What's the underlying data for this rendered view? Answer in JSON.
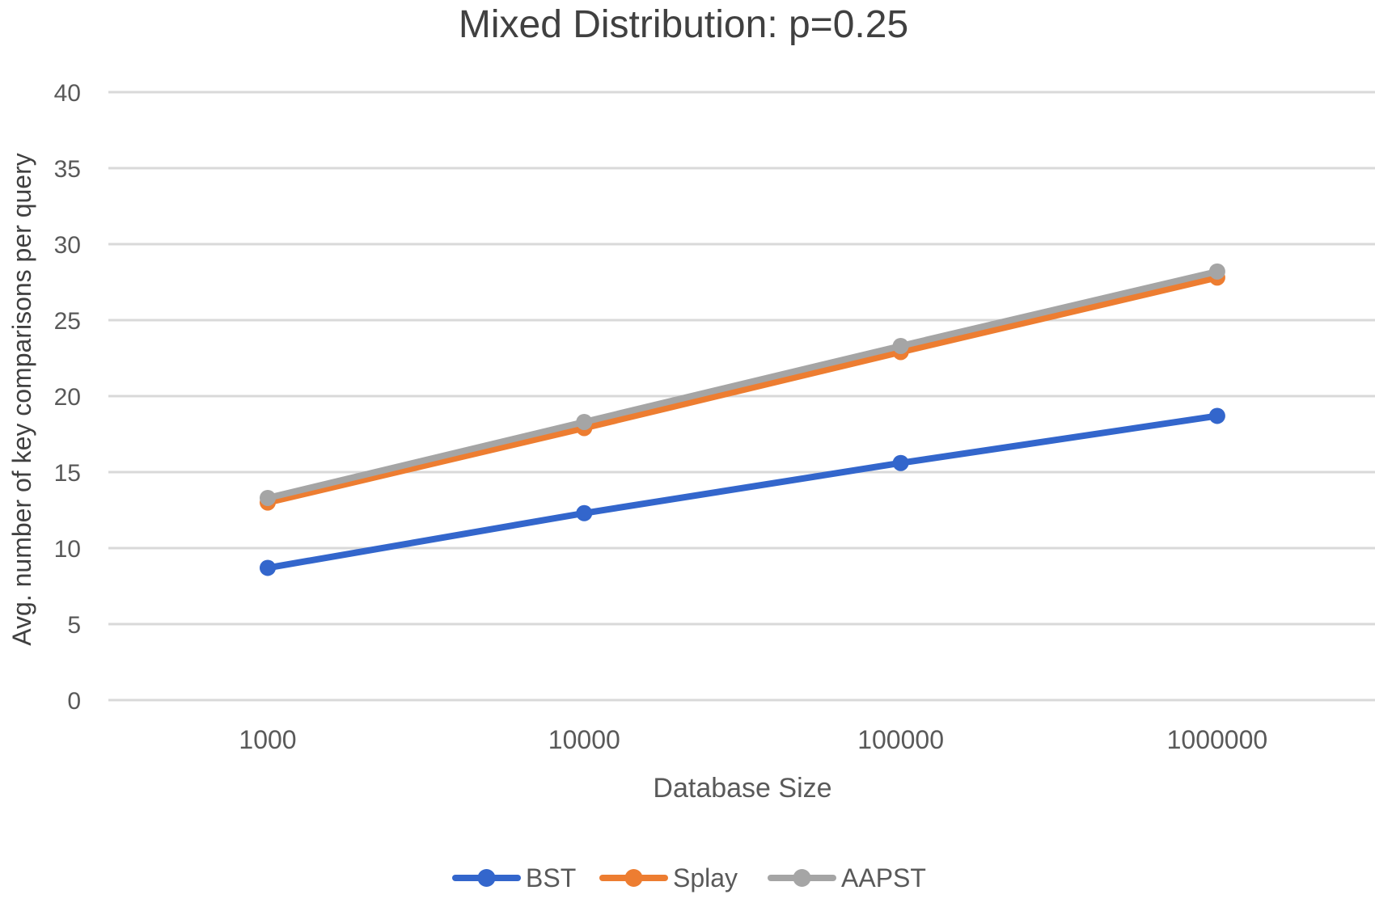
{
  "chart_data": {
    "type": "line",
    "title": "Mixed Distribution: p=0.25",
    "xlabel": "Database Size",
    "ylabel": "Avg. number of key comparisons per query",
    "categories": [
      "1000",
      "10000",
      "100000",
      "1000000"
    ],
    "ylim": [
      0,
      40
    ],
    "yticks": [
      0,
      5,
      10,
      15,
      20,
      25,
      30,
      35,
      40
    ],
    "grid": true,
    "legend_position": "bottom",
    "series": [
      {
        "name": "BST",
        "color": "#3366cc",
        "values": [
          8.7,
          12.3,
          15.6,
          18.7
        ]
      },
      {
        "name": "Splay",
        "color": "#ed7d31",
        "values": [
          13.0,
          17.9,
          22.9,
          27.8
        ]
      },
      {
        "name": "AAPST",
        "color": "#a5a5a5",
        "values": [
          13.3,
          18.3,
          23.3,
          28.2
        ]
      }
    ]
  }
}
